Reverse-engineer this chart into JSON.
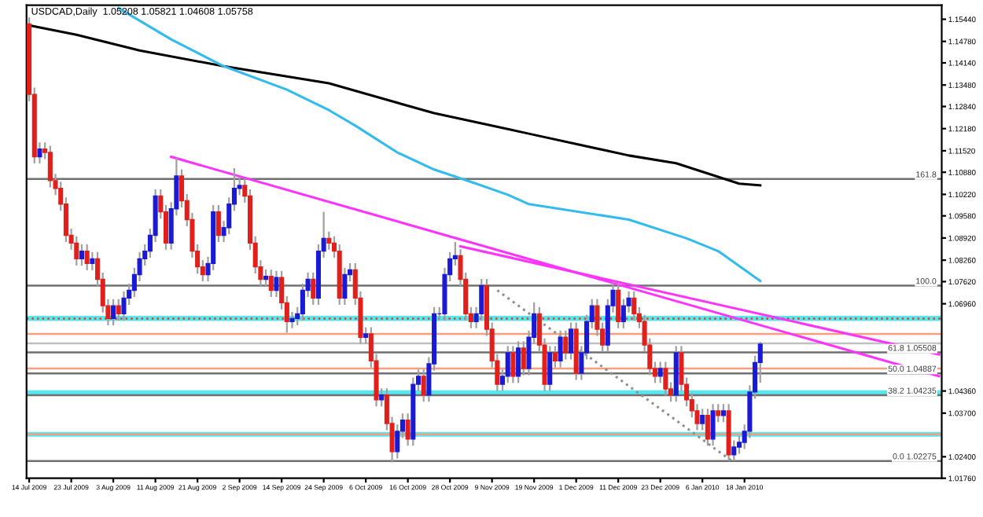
{
  "chart_data": {
    "type": "candlestick",
    "title": "USDCAD,Daily  1.05208 1.05821 1.04608 1.05758",
    "categories": [
      "14 Jul 2009",
      null,
      null,
      null,
      null,
      null,
      null,
      null,
      "23 Jul 2009",
      null,
      null,
      null,
      null,
      null,
      null,
      null,
      "3 Aug 2009",
      null,
      null,
      null,
      null,
      null,
      null,
      null,
      "11 Aug 2009",
      null,
      null,
      null,
      null,
      null,
      null,
      null,
      "21 Aug 2009",
      null,
      null,
      null,
      null,
      null,
      null,
      null,
      "2 Sep 2009",
      null,
      null,
      null,
      null,
      null,
      null,
      null,
      "14 Sep 2009",
      null,
      null,
      null,
      null,
      null,
      null,
      null,
      "24 Sep 2009",
      null,
      null,
      null,
      null,
      null,
      null,
      null,
      "6 Oct 2009",
      null,
      null,
      null,
      null,
      null,
      null,
      null,
      "16 Oct 2009",
      null,
      null,
      null,
      null,
      null,
      null,
      null,
      "28 Oct 2009",
      null,
      null,
      null,
      null,
      null,
      null,
      null,
      "9 Nov 2009",
      null,
      null,
      null,
      null,
      null,
      null,
      null,
      "19 Nov 2009",
      null,
      null,
      null,
      null,
      null,
      null,
      null,
      "1 Dec 2009",
      null,
      null,
      null,
      null,
      null,
      null,
      null,
      "11 Dec 2009",
      null,
      null,
      null,
      null,
      null,
      null,
      null,
      "23 Dec 2009",
      null,
      null,
      null,
      null,
      null,
      null,
      null,
      "6 Jan 2010",
      null,
      null,
      null,
      null,
      null,
      null,
      null,
      "18 Jan 2010",
      null,
      null,
      null,
      null,
      null,
      null,
      null,
      null,
      null,
      null,
      null,
      null,
      null,
      null,
      null,
      null,
      null,
      null,
      null,
      null,
      null,
      null,
      null,
      null,
      null,
      null,
      null,
      null,
      null,
      null,
      null,
      null,
      null,
      null,
      null,
      null,
      null
    ],
    "series": [
      {
        "colors": [
          "#e0201c",
          "#e0201c",
          "#1a1ad6",
          "#e0201c",
          "#e0201c",
          "#e0201c",
          "#e0201c",
          "#e0201c",
          "#e0201c",
          "#e0201c",
          "#1a1ad6",
          "#e0201c",
          "#1a1ad6",
          "#e0201c",
          "#e0201c",
          "#e0201c",
          "#1a1ad6",
          "#e0201c",
          "#1a1ad6",
          "#1a1ad6",
          "#1a1ad6",
          "#1a1ad6",
          "#1a1ad6",
          "#1a1ad6",
          "#1a1ad6",
          "#e0201c",
          "#e0201c",
          "#1a1ad6",
          "#1a1ad6",
          "#e0201c",
          "#e0201c",
          "#e0201c",
          "#e0201c",
          "#e0201c",
          "#1a1ad6",
          "#1a1ad6",
          "#e0201c",
          "#1a1ad6",
          "#1a1ad6",
          "#1a1ad6",
          "#1a1ad6",
          "#e0201c",
          "#e0201c",
          "#e0201c",
          "#e0201c",
          "#1a1ad6",
          "#e0201c",
          "#1a1ad6",
          "#e0201c",
          "#e0201c",
          "#1a1ad6",
          "#1a1ad6",
          "#1a1ad6",
          "#1a1ad6",
          "#e0201c",
          "#1a1ad6",
          "#1a1ad6",
          "#e0201c",
          "#e0201c",
          "#e0201c",
          "#1a1ad6",
          "#1a1ad6",
          "#e0201c",
          "#e0201c",
          "#1a1ad6",
          "#e0201c",
          "#e0201c",
          "#1a1ad6",
          "#e0201c",
          "#e0201c",
          "#1a1ad6",
          "#1a1ad6",
          "#e0201c",
          "#1a1ad6",
          "#1a1ad6",
          "#e0201c",
          "#1a1ad6",
          "#1a1ad6",
          "#1a1ad6",
          "#1a1ad6",
          "#1a1ad6",
          "#1a1ad6",
          "#e0201c",
          "#e0201c",
          "#e0201c",
          "#1a1ad6",
          "#1a1ad6",
          "#e0201c",
          "#e0201c",
          "#e0201c",
          "#1a1ad6",
          "#1a1ad6",
          "#e0201c",
          "#1a1ad6",
          "#e0201c",
          "#1a1ad6",
          "#1a1ad6",
          "#e0201c",
          "#e0201c",
          "#1a1ad6",
          "#e0201c",
          "#1a1ad6",
          "#e0201c",
          "#1a1ad6",
          "#e0201c",
          "#1a1ad6",
          "#1a1ad6",
          "#1a1ad6",
          "#e0201c",
          "#e0201c",
          "#1a1ad6",
          "#1a1ad6",
          "#e0201c",
          "#1a1ad6",
          "#1a1ad6",
          "#e0201c",
          "#e0201c",
          "#e0201c",
          "#e0201c",
          "#e0201c",
          "#1a1ad6",
          "#e0201c",
          "#e0201c",
          "#1a1ad6",
          "#e0201c",
          "#e0201c",
          "#e0201c",
          "#e0201c",
          "#1a1ad6",
          "#e0201c",
          "#1a1ad6",
          "#e0201c",
          "#1a1ad6",
          "#e0201c",
          "#1a1ad6",
          "#1a1ad6",
          "#1a1ad6",
          "#1a1ad6",
          "#1a1ad6",
          "#1a1ad6",
          null,
          null,
          null,
          null,
          null,
          null,
          null,
          null,
          null,
          null,
          null,
          null,
          null,
          null,
          null,
          null,
          null,
          null,
          null,
          null,
          null,
          null,
          null,
          null,
          null,
          null,
          null,
          null,
          null,
          null,
          null,
          null,
          null,
          null
        ],
        "ohlc": [
          [
            1.153,
            1.155,
            1.13,
            1.132
          ],
          [
            1.132,
            1.134,
            1.1114,
            1.1134
          ],
          [
            1.1134,
            1.1177,
            1.1114,
            1.1157
          ],
          [
            1.1157,
            1.1177,
            1.1127,
            1.1147
          ],
          [
            1.1147,
            1.1167,
            1.1043,
            1.1063
          ],
          [
            1.1063,
            1.1083,
            1.102,
            1.104
          ],
          [
            1.104,
            1.106,
            1.0973,
            1.0993
          ],
          [
            1.0993,
            1.1013,
            1.088,
            1.09
          ],
          [
            1.09,
            1.092,
            1.0857,
            1.0877
          ],
          [
            1.0877,
            1.0897,
            1.081,
            1.083
          ],
          [
            1.083,
            1.0873,
            1.081,
            1.0853
          ],
          [
            1.0853,
            1.0873,
            1.0796,
            1.0816
          ],
          [
            1.0816,
            1.085,
            1.0796,
            1.083
          ],
          [
            1.083,
            1.085,
            1.0749,
            1.0769
          ],
          [
            1.0769,
            1.0789,
            1.067,
            1.069
          ],
          [
            1.069,
            1.071,
            1.0632,
            1.0652
          ],
          [
            1.0652,
            1.071,
            1.0632,
            1.069
          ],
          [
            1.069,
            1.071,
            1.0646,
            1.0666
          ],
          [
            1.0666,
            1.0733,
            1.0646,
            1.0713
          ],
          [
            1.0713,
            1.0756,
            1.0693,
            1.0736
          ],
          [
            1.0736,
            1.0803,
            1.0716,
            1.0783
          ],
          [
            1.0783,
            1.085,
            1.0763,
            1.083
          ],
          [
            1.083,
            1.0873,
            1.081,
            1.0853
          ],
          [
            1.0853,
            1.092,
            1.0833,
            1.09
          ],
          [
            1.09,
            1.1037,
            1.088,
            1.1017
          ],
          [
            1.1017,
            1.1037,
            1.095,
            1.097
          ],
          [
            1.097,
            1.099,
            1.0857,
            1.0877
          ],
          [
            1.0877,
            1.0999,
            1.0857,
            1.0979
          ],
          [
            1.0979,
            1.113,
            1.0959,
            1.1077
          ],
          [
            1.1077,
            1.1097,
            1.0983,
            1.1003
          ],
          [
            1.1003,
            1.1023,
            1.0927,
            1.0947
          ],
          [
            1.0947,
            1.0967,
            1.0833,
            1.0853
          ],
          [
            1.0853,
            1.0873,
            1.0786,
            1.0806
          ],
          [
            1.0806,
            1.0826,
            1.0763,
            1.0783
          ],
          [
            1.0783,
            1.0836,
            1.0763,
            1.0816
          ],
          [
            1.0816,
            1.099,
            1.0796,
            1.097
          ],
          [
            1.097,
            1.099,
            1.088,
            1.09
          ],
          [
            1.09,
            1.0943,
            1.088,
            1.0923
          ],
          [
            1.0923,
            1.1013,
            1.0903,
            1.0993
          ],
          [
            1.0993,
            1.11,
            1.0973,
            1.104
          ],
          [
            1.104,
            1.1069,
            1.102,
            1.1049
          ],
          [
            1.1049,
            1.1069,
            1.0997,
            1.1017
          ],
          [
            1.1017,
            1.1037,
            1.0857,
            1.0877
          ],
          [
            1.0877,
            1.0897,
            1.0786,
            1.0806
          ],
          [
            1.0806,
            1.0826,
            1.0749,
            1.0769
          ],
          [
            1.0769,
            1.0798,
            1.0749,
            1.0778
          ],
          [
            1.0778,
            1.0798,
            1.0716,
            1.0736
          ],
          [
            1.0736,
            1.0794,
            1.0716,
            1.0774
          ],
          [
            1.0774,
            1.0794,
            1.0679,
            1.0699
          ],
          [
            1.0699,
            1.0719,
            1.061,
            1.0643
          ],
          [
            1.0643,
            1.0672,
            1.0623,
            1.0652
          ],
          [
            1.0652,
            1.0686,
            1.0632,
            1.0666
          ],
          [
            1.0666,
            1.0756,
            1.0646,
            1.0736
          ],
          [
            1.0736,
            1.0789,
            1.0716,
            1.0769
          ],
          [
            1.0769,
            1.0789,
            1.0693,
            1.0713
          ],
          [
            1.0713,
            1.0873,
            1.0693,
            1.0853
          ],
          [
            1.0853,
            1.097,
            1.0833,
            1.0891
          ],
          [
            1.0891,
            1.0911,
            1.0857,
            1.0877
          ],
          [
            1.0877,
            1.0897,
            1.0833,
            1.0853
          ],
          [
            1.0853,
            1.0873,
            1.0693,
            1.0713
          ],
          [
            1.0713,
            1.0803,
            1.0693,
            1.0783
          ],
          [
            1.0783,
            1.0817,
            1.0763,
            1.0797
          ],
          [
            1.0797,
            1.0817,
            1.0693,
            1.0713
          ],
          [
            1.0713,
            1.0733,
            1.0576,
            1.0596
          ],
          [
            1.0596,
            1.0626,
            1.0576,
            1.0606
          ],
          [
            1.0606,
            1.0626,
            1.0506,
            1.0526
          ],
          [
            1.0526,
            1.0546,
            1.039,
            1.041
          ],
          [
            1.041,
            1.0444,
            1.039,
            1.0424
          ],
          [
            1.0424,
            1.0444,
            1.0319,
            1.0339
          ],
          [
            1.0339,
            1.0359,
            1.0223,
            1.0255
          ],
          [
            1.0255,
            1.0336,
            1.0235,
            1.0316
          ],
          [
            1.0316,
            1.0369,
            1.0296,
            1.0349
          ],
          [
            1.0349,
            1.0369,
            1.0273,
            1.0293
          ],
          [
            1.0293,
            1.0476,
            1.0273,
            1.0456
          ],
          [
            1.0456,
            1.05,
            1.0436,
            1.048
          ],
          [
            1.048,
            1.05,
            1.0404,
            1.0424
          ],
          [
            1.0424,
            1.0537,
            1.0404,
            1.0517
          ],
          [
            1.0517,
            1.0686,
            1.0497,
            1.0666
          ],
          [
            1.0666,
            1.0686,
            1.0646,
            1.0666
          ],
          [
            1.0666,
            1.0803,
            1.0646,
            1.0783
          ],
          [
            1.0783,
            1.085,
            1.0763,
            1.083
          ],
          [
            1.083,
            1.088,
            1.081,
            1.0839
          ],
          [
            1.0839,
            1.0859,
            1.0749,
            1.0769
          ],
          [
            1.0769,
            1.0789,
            1.0646,
            1.0666
          ],
          [
            1.0666,
            1.0686,
            1.0623,
            1.0643
          ],
          [
            1.0643,
            1.0686,
            1.0623,
            1.0666
          ],
          [
            1.0666,
            1.077,
            1.0646,
            1.075
          ],
          [
            1.075,
            1.077,
            1.06,
            1.062
          ],
          [
            1.062,
            1.064,
            1.0506,
            1.0526
          ],
          [
            1.0526,
            1.0546,
            1.0436,
            1.0456
          ],
          [
            1.0456,
            1.05,
            1.0436,
            1.048
          ],
          [
            1.048,
            1.057,
            1.046,
            1.055
          ],
          [
            1.055,
            1.057,
            1.046,
            1.048
          ],
          [
            1.048,
            1.0584,
            1.046,
            1.0564
          ],
          [
            1.0564,
            1.0584,
            1.0483,
            1.0503
          ],
          [
            1.0503,
            1.0616,
            1.0483,
            1.0596
          ],
          [
            1.0596,
            1.07,
            1.0576,
            1.0666
          ],
          [
            1.0666,
            1.0686,
            1.0553,
            1.0573
          ],
          [
            1.0573,
            1.0593,
            1.0436,
            1.0456
          ],
          [
            1.0456,
            1.057,
            1.0436,
            1.055
          ],
          [
            1.055,
            1.057,
            1.0506,
            1.0526
          ],
          [
            1.0526,
            1.0616,
            1.0506,
            1.0596
          ],
          [
            1.0596,
            1.0616,
            1.053,
            1.055
          ],
          [
            1.055,
            1.064,
            1.053,
            1.062
          ],
          [
            1.062,
            1.064,
            1.0469,
            1.0489
          ],
          [
            1.0489,
            1.057,
            1.0469,
            1.055
          ],
          [
            1.055,
            1.0663,
            1.053,
            1.0643
          ],
          [
            1.0643,
            1.071,
            1.0623,
            1.069
          ],
          [
            1.069,
            1.071,
            1.06,
            1.062
          ],
          [
            1.062,
            1.064,
            1.0553,
            1.0573
          ],
          [
            1.0573,
            1.071,
            1.0553,
            1.069
          ],
          [
            1.069,
            1.076,
            1.067,
            1.0736
          ],
          [
            1.0736,
            1.0756,
            1.0623,
            1.0643
          ],
          [
            1.0643,
            1.071,
            1.0623,
            1.069
          ],
          [
            1.069,
            1.0733,
            1.067,
            1.0713
          ],
          [
            1.0713,
            1.0733,
            1.0646,
            1.0666
          ],
          [
            1.0666,
            1.0686,
            1.0623,
            1.0643
          ],
          [
            1.0643,
            1.0663,
            1.0553,
            1.0573
          ],
          [
            1.0573,
            1.0593,
            1.0483,
            1.0503
          ],
          [
            1.0503,
            1.0523,
            1.046,
            1.048
          ],
          [
            1.048,
            1.0523,
            1.046,
            1.0503
          ],
          [
            1.0503,
            1.0523,
            1.0422,
            1.0442
          ],
          [
            1.0442,
            1.0462,
            1.0404,
            1.0424
          ],
          [
            1.0424,
            1.057,
            1.0404,
            1.055
          ],
          [
            1.055,
            1.057,
            1.0436,
            1.0456
          ],
          [
            1.0456,
            1.0476,
            1.039,
            1.041
          ],
          [
            1.041,
            1.043,
            1.0357,
            1.0377
          ],
          [
            1.0377,
            1.0397,
            1.0319,
            1.0339
          ],
          [
            1.0339,
            1.0383,
            1.0319,
            1.0363
          ],
          [
            1.0363,
            1.0383,
            1.0273,
            1.0293
          ],
          [
            1.0293,
            1.0397,
            1.0273,
            1.0377
          ],
          [
            1.0377,
            1.0397,
            1.0343,
            1.0363
          ],
          [
            1.0363,
            1.0397,
            1.0343,
            1.0377
          ],
          [
            1.0377,
            1.0397,
            1.0228,
            1.0246
          ],
          [
            1.0246,
            1.0289,
            1.0228,
            1.0269
          ],
          [
            1.0269,
            1.0303,
            1.0249,
            1.0283
          ],
          [
            1.0283,
            1.0336,
            1.0263,
            1.0316
          ],
          [
            1.0316,
            1.0453,
            1.0296,
            1.0433
          ],
          [
            1.0433,
            1.0541,
            1.0413,
            1.0521
          ],
          [
            1.05208,
            1.05821,
            1.04608,
            1.05758
          ],
          null,
          null,
          null,
          null,
          null,
          null,
          null,
          null,
          null,
          null,
          null,
          null,
          null,
          null,
          null,
          null,
          null,
          null,
          null,
          null,
          null,
          null,
          null,
          null,
          null,
          null,
          null,
          null,
          null,
          null,
          null,
          null,
          null,
          null
        ]
      },
      {
        "type": "line",
        "color": "#000000",
        "values": [
          1.1526,
          null,
          null,
          null,
          null,
          null,
          null,
          null,
          null,
          1.1498,
          null,
          null,
          null,
          null,
          null,
          null,
          null,
          null,
          null,
          null,
          null,
          1.1451,
          null,
          null,
          null,
          null,
          null,
          null,
          null,
          null,
          null,
          null,
          null,
          null,
          null,
          null,
          null,
          1.1404,
          null,
          null,
          null,
          null,
          null,
          null,
          null,
          null,
          null,
          null,
          null,
          null,
          null,
          null,
          null,
          null,
          null,
          null,
          null,
          1.1353,
          null,
          null,
          null,
          null,
          null,
          null,
          null,
          null,
          null,
          null,
          null,
          null,
          null,
          null,
          null,
          null,
          null,
          null,
          null,
          1.1264,
          null,
          null,
          null,
          null,
          null,
          null,
          null,
          null,
          null,
          null,
          null,
          null,
          null,
          1.1217,
          null,
          null,
          null,
          1.1203,
          null,
          null,
          null,
          null,
          null,
          null,
          null,
          null,
          null,
          null,
          null,
          null,
          null,
          null,
          null,
          null,
          null,
          null,
          1.1138,
          null,
          null,
          null,
          null,
          null,
          null,
          null,
          null,
          1.1115,
          null,
          null,
          null,
          null,
          null,
          null,
          null,
          null,
          null,
          null,
          null,
          1.1054,
          null,
          null,
          null,
          1.1049,
          null,
          null,
          null,
          null,
          null,
          null,
          null,
          null,
          null,
          null,
          null,
          null,
          null,
          null,
          null,
          null,
          null,
          null,
          null,
          null,
          null,
          null,
          null,
          null,
          null,
          null,
          null,
          null,
          null,
          null,
          null,
          null,
          null,
          null
        ]
      },
      {
        "type": "line",
        "color": "#33bbee",
        "values": [
          null,
          null,
          null,
          null,
          null,
          null,
          null,
          null,
          null,
          null,
          null,
          null,
          null,
          null,
          null,
          null,
          null,
          1.1577,
          null,
          null,
          null,
          null,
          null,
          null,
          null,
          null,
          null,
          1.1484,
          null,
          null,
          null,
          null,
          null,
          null,
          null,
          null,
          null,
          1.1404,
          null,
          null,
          null,
          null,
          null,
          null,
          null,
          null,
          null,
          null,
          null,
          1.1334,
          null,
          null,
          null,
          null,
          null,
          null,
          null,
          1.1273,
          null,
          null,
          null,
          null,
          1.1227,
          null,
          null,
          null,
          null,
          null,
          null,
          null,
          1.1147,
          null,
          null,
          null,
          null,
          null,
          null,
          1.1096,
          null,
          null,
          null,
          null,
          null,
          null,
          null,
          1.1054,
          null,
          null,
          null,
          null,
          null,
          1.1021,
          null,
          null,
          null,
          1.0993,
          null,
          null,
          null,
          null,
          null,
          null,
          null,
          null,
          null,
          null,
          null,
          null,
          null,
          null,
          null,
          null,
          null,
          null,
          1.0947,
          null,
          null,
          null,
          null,
          null,
          null,
          null,
          null,
          null,
          null,
          1.0891,
          null,
          null,
          null,
          null,
          null,
          1.0853,
          null,
          null,
          null,
          null,
          null,
          null,
          null,
          1.0764,
          null,
          null,
          null,
          null,
          null,
          null,
          null,
          null,
          null,
          null,
          null,
          null,
          null,
          null,
          null,
          null,
          null,
          null,
          null,
          null,
          null,
          null,
          null,
          null,
          null,
          null,
          null,
          null,
          null,
          null,
          null,
          null,
          null,
          null
        ]
      },
      {
        "type": "line",
        "color": "#ff33ff",
        "values": [
          null,
          null,
          null,
          null,
          null,
          null,
          null,
          null,
          null,
          null,
          null,
          null,
          null,
          null,
          null,
          null,
          null,
          null,
          null,
          null,
          null,
          null,
          null,
          null,
          null,
          null,
          null,
          1.1134,
          null,
          null,
          null,
          null,
          null,
          null,
          null,
          null,
          null,
          null,
          null,
          null,
          null,
          null,
          null,
          null,
          null,
          null,
          null,
          null,
          null,
          null,
          null,
          null,
          null,
          null,
          null,
          null,
          null,
          null,
          null,
          null,
          null,
          null,
          null,
          null,
          null,
          null,
          null,
          null,
          null,
          null,
          null,
          null,
          null,
          null,
          null,
          null,
          null,
          null,
          null,
          null,
          null,
          null,
          null,
          null,
          null,
          null,
          null,
          null,
          null,
          null,
          null,
          null,
          null,
          null,
          null,
          null,
          null,
          null,
          null,
          null,
          null,
          null,
          null,
          null,
          null,
          null,
          null,
          null,
          null,
          null,
          null,
          null,
          null,
          null,
          null,
          null,
          null,
          null,
          null,
          null,
          null,
          null,
          null,
          null,
          null,
          null,
          null,
          null,
          null,
          null,
          null,
          null,
          null,
          null,
          null,
          null,
          null,
          null,
          null,
          null,
          null,
          null,
          null,
          null,
          null,
          null,
          null,
          null,
          null,
          null,
          null,
          null,
          null,
          null,
          null,
          null,
          null,
          null,
          null,
          null,
          null,
          null,
          null,
          null,
          null,
          null,
          null,
          null,
          null,
          null,
          null,
          null,
          null,
          1.048
        ]
      },
      {
        "type": "line",
        "color": "#ff33ff",
        "values": [
          null,
          null,
          null,
          null,
          null,
          null,
          null,
          null,
          null,
          null,
          null,
          null,
          null,
          null,
          null,
          null,
          null,
          null,
          null,
          null,
          null,
          null,
          null,
          null,
          null,
          null,
          null,
          null,
          null,
          null,
          null,
          null,
          null,
          null,
          null,
          null,
          null,
          null,
          null,
          null,
          null,
          null,
          null,
          null,
          null,
          null,
          null,
          null,
          null,
          null,
          null,
          null,
          null,
          null,
          null,
          null,
          null,
          null,
          null,
          null,
          null,
          null,
          null,
          null,
          null,
          null,
          null,
          null,
          null,
          null,
          null,
          null,
          null,
          null,
          null,
          null,
          null,
          null,
          null,
          null,
          null,
          null,
          1.0867,
          null,
          null,
          null,
          null,
          null,
          null,
          null,
          null,
          null,
          null,
          null,
          null,
          null,
          null,
          null,
          null,
          null,
          null,
          null,
          null,
          null,
          null,
          null,
          null,
          null,
          null,
          null,
          null,
          null,
          null,
          null,
          null,
          null,
          null,
          null,
          null,
          null,
          null,
          null,
          null,
          null,
          null,
          null,
          null,
          null,
          null,
          null,
          null,
          null,
          null,
          null,
          null,
          null,
          null,
          null,
          null,
          null,
          null,
          null,
          null,
          null,
          null,
          null,
          null,
          null,
          null,
          null,
          null,
          null,
          null,
          null,
          null,
          null,
          null,
          null,
          null,
          null,
          null,
          null,
          null,
          null,
          null,
          null,
          null,
          null,
          null,
          null,
          null,
          null,
          null,
          1.0545
        ]
      },
      {
        "type": "line",
        "color": "#909090",
        "line_style": "dotted",
        "values": [
          null,
          null,
          null,
          null,
          null,
          null,
          null,
          null,
          null,
          null,
          null,
          null,
          null,
          null,
          null,
          null,
          null,
          null,
          null,
          null,
          null,
          null,
          null,
          null,
          null,
          null,
          null,
          null,
          null,
          null,
          null,
          null,
          null,
          null,
          null,
          null,
          null,
          null,
          null,
          null,
          null,
          null,
          null,
          null,
          null,
          null,
          null,
          null,
          null,
          null,
          null,
          null,
          null,
          null,
          null,
          null,
          null,
          null,
          null,
          null,
          null,
          null,
          null,
          null,
          null,
          null,
          null,
          null,
          null,
          null,
          null,
          null,
          null,
          null,
          null,
          null,
          null,
          null,
          null,
          null,
          null,
          null,
          null,
          null,
          null,
          null,
          null,
          null,
          null,
          1.0736,
          null,
          null,
          null,
          null,
          null,
          null,
          null,
          null,
          null,
          null,
          null,
          null,
          null,
          null,
          null,
          null,
          null,
          null,
          null,
          null,
          null,
          null,
          null,
          null,
          null,
          null,
          null,
          null,
          null,
          null,
          null,
          null,
          null,
          null,
          null,
          null,
          null,
          null,
          null,
          null,
          null,
          null,
          null,
          null,
          1.0223,
          null,
          null,
          null,
          null,
          null,
          null,
          null,
          null,
          null,
          null,
          null,
          null,
          null,
          null,
          null,
          null,
          null,
          null,
          null,
          null,
          null,
          null,
          null,
          null,
          null,
          null,
          null,
          null,
          null,
          null,
          null,
          null,
          null,
          null,
          null,
          null,
          null,
          null,
          null
        ]
      }
    ],
    "annotations": [
      {
        "text": "161.8",
        "y": 1.1068
      },
      {
        "text": "100.0",
        "y": 1.075
      }
    ],
    "bands": [
      {
        "axis": "y",
        "from": 1.0645,
        "to": 1.066,
        "color": "#55e8f0"
      },
      {
        "axis": "y",
        "from": 1.0424,
        "to": 1.0438,
        "color": "#55e8f0"
      },
      {
        "axis": "y",
        "from": 1.03,
        "to": 1.0314,
        "color": "#55e8f0"
      }
    ],
    "ref_lines": [
      {
        "axis": "y",
        "value": 1.0652,
        "color": "#e04020",
        "line_style": "dotted"
      },
      {
        "axis": "y",
        "value": 1.0606,
        "color": "#f4a080"
      },
      {
        "axis": "y",
        "value": 1.0503,
        "color": "#f4a080"
      },
      {
        "axis": "y",
        "value": 1.0307,
        "color": "#f4a080"
      },
      {
        "axis": "y",
        "value": 1.0578,
        "color": "#c0c0c0"
      },
      {
        "axis": "y",
        "value": 1.1068,
        "color": "#707070"
      },
      {
        "axis": "y",
        "value": 1.075,
        "color": "#707070"
      },
      {
        "axis": "y",
        "value": 1.05508,
        "color": "#707070",
        "label": "61.8 1.05508"
      },
      {
        "axis": "y",
        "value": 1.04887,
        "color": "#707070",
        "label": "50.0 1.04887"
      },
      {
        "axis": "y",
        "value": 1.04235,
        "color": "#707070",
        "label": "38.2 1.04235"
      },
      {
        "axis": "y",
        "value": 1.02275,
        "color": "#707070",
        "label": "0.0 1.02275"
      }
    ],
    "ylim": [
      1.0176,
      1.1586
    ],
    "yticks": [
      {
        "value": 1.1544,
        "label": "1.15440"
      },
      {
        "value": 1.1478,
        "label": "1.14780"
      },
      {
        "value": 1.1414,
        "label": "1.14140"
      },
      {
        "value": 1.1348,
        "label": "1.13480"
      },
      {
        "value": 1.1284,
        "label": "1.12840"
      },
      {
        "value": 1.1218,
        "label": "1.12180"
      },
      {
        "value": 1.1152,
        "label": "1.11520"
      },
      {
        "value": 1.1088,
        "label": "1.10880"
      },
      {
        "value": 1.1022,
        "label": "1.10220"
      },
      {
        "value": 1.0958,
        "label": "1.09580"
      },
      {
        "value": 1.0892,
        "label": "1.08920"
      },
      {
        "value": 1.0826,
        "label": "1.08260"
      },
      {
        "value": 1.0762,
        "label": "1.07620"
      },
      {
        "value": 1.0696,
        "label": "1.06960"
      },
      {
        "value": 1.0436,
        "label": "1.04360"
      },
      {
        "value": 1.037,
        "label": "1.03700"
      },
      {
        "value": 1.024,
        "label": "1.02400"
      },
      {
        "value": 1.0176,
        "label": "1.01760"
      }
    ],
    "grid": false,
    "legend": false
  }
}
